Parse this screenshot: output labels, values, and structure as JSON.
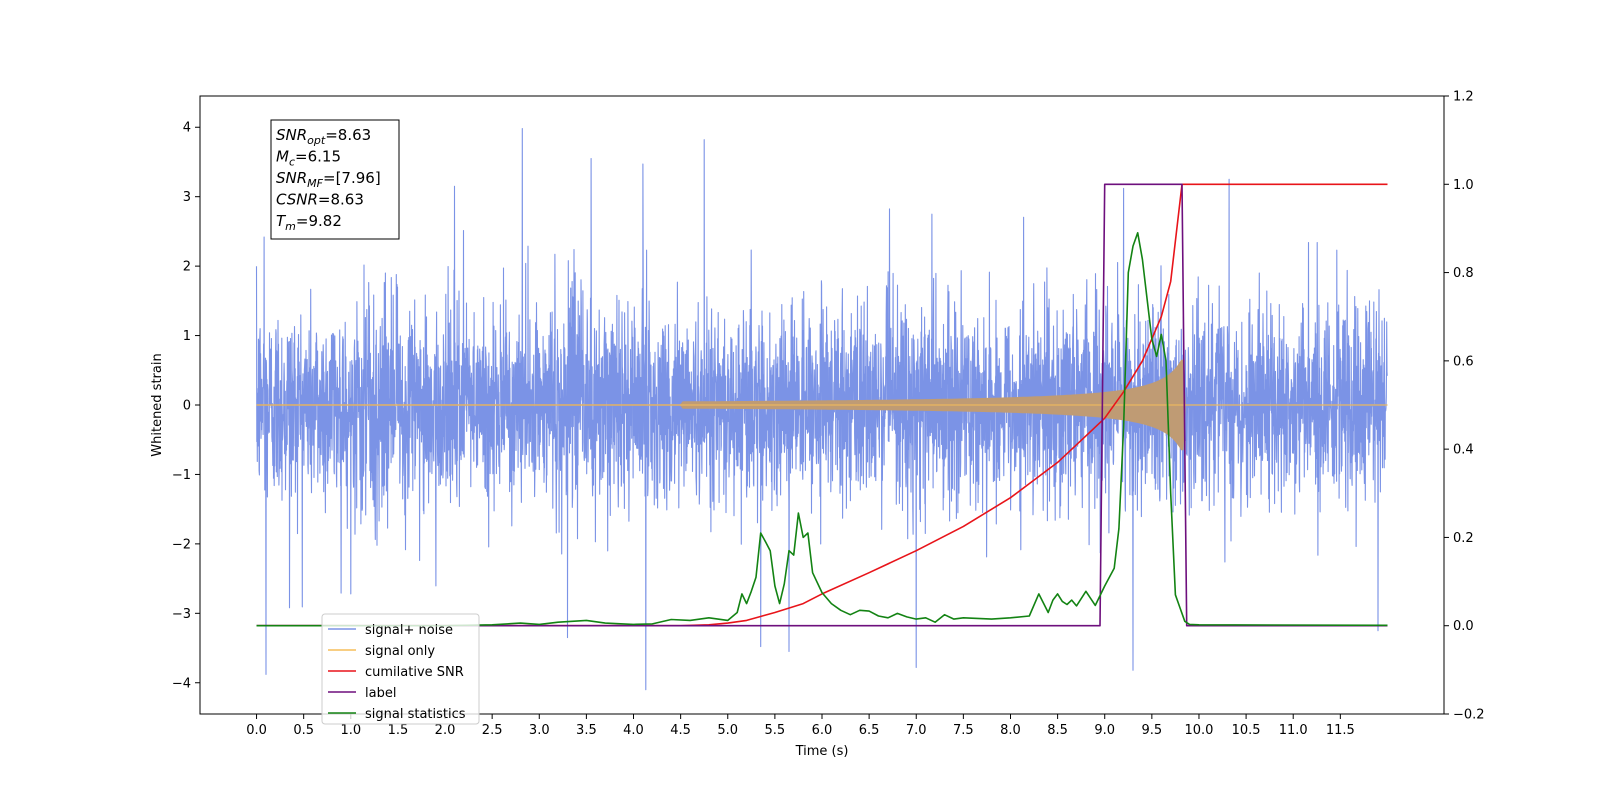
{
  "chart_data": {
    "type": "line",
    "xlabel": "Time (s)",
    "ylabel_left": "Whitened strain",
    "ylabel_right": "",
    "xlim": [
      -0.6,
      12.6
    ],
    "ylim_left": [
      -4.45,
      4.45
    ],
    "ylim_right": [
      -0.2,
      1.2
    ],
    "x_ticks": [
      "0.0",
      "0.5",
      "1.0",
      "1.5",
      "2.0",
      "2.5",
      "3.0",
      "3.5",
      "4.0",
      "4.5",
      "5.0",
      "5.5",
      "6.0",
      "6.5",
      "7.0",
      "7.5",
      "8.0",
      "8.5",
      "9.0",
      "9.5",
      "10.0",
      "10.5",
      "11.0",
      "11.5"
    ],
    "y_ticks_left": [
      "−4",
      "−3",
      "−2",
      "−1",
      "0",
      "1",
      "2",
      "3",
      "4"
    ],
    "y_ticks_right": [
      "−0.2",
      "0.0",
      "0.2",
      "0.4",
      "0.6",
      "0.8",
      "1.0",
      "1.2"
    ],
    "grid": false,
    "legend_position": "lower-left",
    "info_box": [
      {
        "main": "SNR",
        "sub": "opt",
        "rest": "=8.63"
      },
      {
        "main": "M",
        "sub": "c",
        "rest": "=6.15"
      },
      {
        "main": "SNR",
        "sub": "MF",
        "rest": "=[7.96]"
      },
      {
        "main": "CSNR",
        "sub": "",
        "rest": "=8.63"
      },
      {
        "main": "T",
        "sub": "m",
        "rest": "=9.82"
      }
    ],
    "series": [
      {
        "name": "signal+ noise",
        "axis": "left",
        "color": "#7b93e6",
        "style": "noise",
        "x_range": [
          0.0,
          12.0
        ],
        "sigma": 0.72,
        "spikes": [
          {
            "x": 2.82,
            "y": 3.98
          },
          {
            "x": 4.75,
            "y": 3.82
          },
          {
            "x": 3.55,
            "y": 3.55
          },
          {
            "x": 4.1,
            "y": 3.47
          },
          {
            "x": 2.1,
            "y": 3.15
          },
          {
            "x": 10.32,
            "y": 3.25
          },
          {
            "x": 9.2,
            "y": 3.12
          },
          {
            "x": 0.08,
            "y": 2.42
          },
          {
            "x": 4.13,
            "y": -4.1
          },
          {
            "x": 0.1,
            "y": -3.88
          },
          {
            "x": 9.3,
            "y": -3.82
          },
          {
            "x": 7.0,
            "y": -3.78
          },
          {
            "x": 0.35,
            "y": -2.92
          },
          {
            "x": 5.65,
            "y": -3.55
          },
          {
            "x": 5.35,
            "y": -3.48
          },
          {
            "x": 3.3,
            "y": -3.35
          },
          {
            "x": 11.9,
            "y": -3.25
          },
          {
            "x": 1.0,
            "y": -2.72
          }
        ]
      },
      {
        "name": "signal only",
        "axis": "left",
        "color": "#f5be5a",
        "style": "chirp",
        "x_range": [
          0.0,
          12.0
        ],
        "merger": 9.82,
        "peak_amp": 0.68
      },
      {
        "name": "cumilative SNR",
        "axis": "right",
        "color": "#e8141a",
        "style": "line",
        "x": [
          0.0,
          4.5,
          4.8,
          5.0,
          5.2,
          5.5,
          5.8,
          6.0,
          6.5,
          7.0,
          7.5,
          8.0,
          8.5,
          8.8,
          9.0,
          9.2,
          9.4,
          9.6,
          9.7,
          9.82,
          10.0,
          12.0
        ],
        "y": [
          0.0,
          0.0,
          0.002,
          0.006,
          0.012,
          0.03,
          0.05,
          0.072,
          0.12,
          0.17,
          0.225,
          0.29,
          0.37,
          0.43,
          0.47,
          0.53,
          0.6,
          0.7,
          0.78,
          1.0,
          1.0,
          1.0
        ]
      },
      {
        "name": "label",
        "axis": "right",
        "color": "#6e0f7d",
        "style": "line",
        "x": [
          0.0,
          8.95,
          9.0,
          9.82,
          9.87,
          12.0
        ],
        "y": [
          0.0,
          0.0,
          1.0,
          1.0,
          0.0,
          0.0
        ]
      },
      {
        "name": "signal statistics",
        "axis": "right",
        "color": "#138313",
        "style": "line",
        "x": [
          0.0,
          1.0,
          2.0,
          2.5,
          2.8,
          3.0,
          3.2,
          3.5,
          3.7,
          4.0,
          4.2,
          4.4,
          4.6,
          4.8,
          5.0,
          5.1,
          5.15,
          5.2,
          5.25,
          5.3,
          5.35,
          5.4,
          5.45,
          5.5,
          5.55,
          5.6,
          5.65,
          5.7,
          5.75,
          5.8,
          5.85,
          5.9,
          6.0,
          6.1,
          6.2,
          6.3,
          6.4,
          6.5,
          6.6,
          6.7,
          6.8,
          6.9,
          7.0,
          7.1,
          7.2,
          7.3,
          7.4,
          7.5,
          7.8,
          8.0,
          8.2,
          8.3,
          8.4,
          8.45,
          8.5,
          8.55,
          8.6,
          8.65,
          8.7,
          8.8,
          8.9,
          9.0,
          9.1,
          9.15,
          9.2,
          9.25,
          9.3,
          9.35,
          9.4,
          9.45,
          9.5,
          9.55,
          9.6,
          9.65,
          9.7,
          9.75,
          9.8,
          9.85,
          9.9,
          10.0,
          12.0
        ],
        "y": [
          0.0,
          0.0,
          0.0,
          0.002,
          0.006,
          0.003,
          0.008,
          0.012,
          0.006,
          0.003,
          0.004,
          0.014,
          0.012,
          0.018,
          0.012,
          0.03,
          0.072,
          0.05,
          0.078,
          0.11,
          0.21,
          0.19,
          0.17,
          0.09,
          0.05,
          0.095,
          0.17,
          0.16,
          0.255,
          0.2,
          0.21,
          0.12,
          0.075,
          0.05,
          0.035,
          0.025,
          0.035,
          0.033,
          0.022,
          0.018,
          0.028,
          0.02,
          0.015,
          0.018,
          0.008,
          0.025,
          0.015,
          0.018,
          0.015,
          0.018,
          0.022,
          0.072,
          0.03,
          0.058,
          0.072,
          0.055,
          0.048,
          0.058,
          0.045,
          0.078,
          0.046,
          0.09,
          0.13,
          0.22,
          0.45,
          0.8,
          0.86,
          0.89,
          0.83,
          0.74,
          0.65,
          0.61,
          0.66,
          0.6,
          0.3,
          0.07,
          0.04,
          0.01,
          0.003,
          0.002,
          0.001
        ]
      }
    ]
  }
}
